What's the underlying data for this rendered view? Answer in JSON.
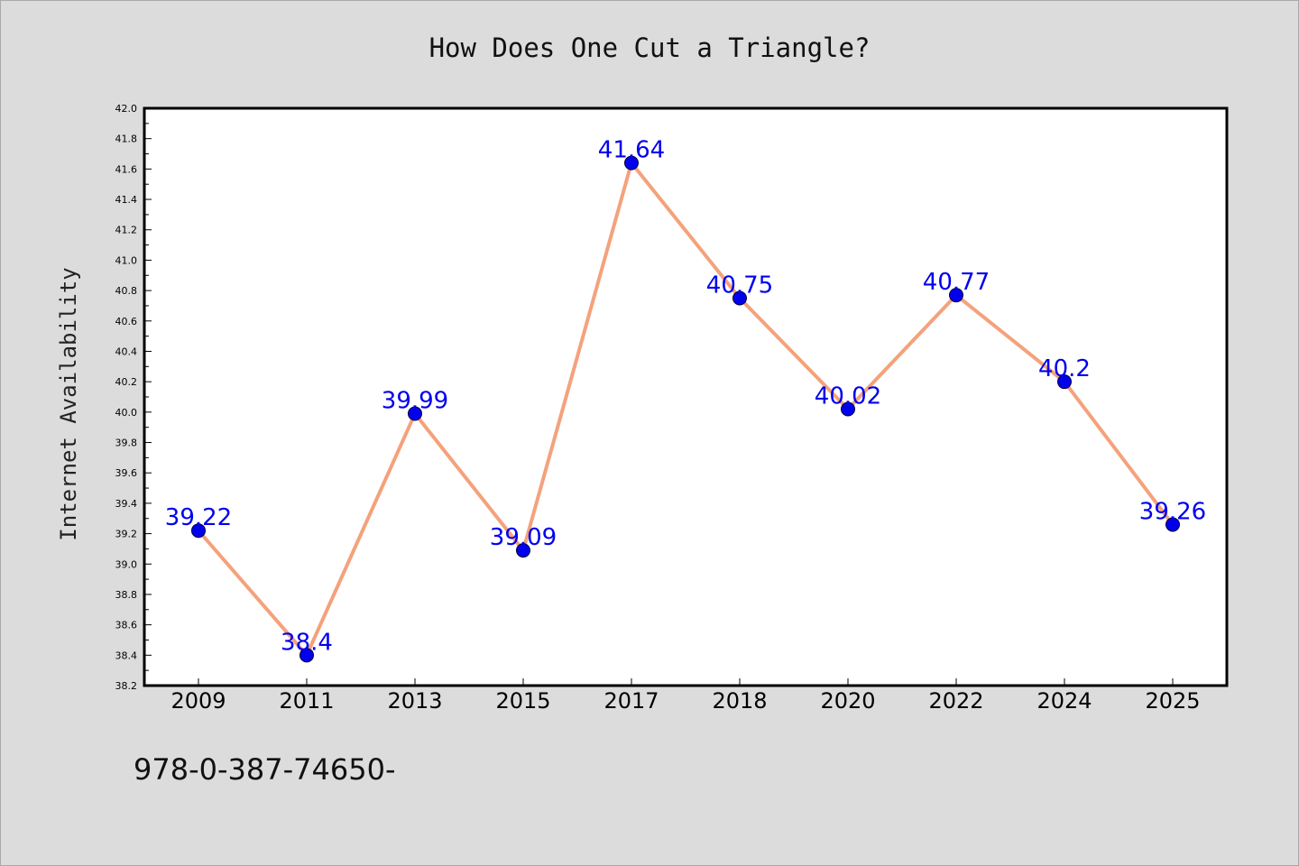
{
  "footer": {
    "code_text": "978-0-387-74650-"
  },
  "chart_data": {
    "type": "line",
    "title": "How Does One Cut a Triangle?",
    "xlabel": "",
    "ylabel": "Internet Availability",
    "categories": [
      "2009",
      "2011",
      "2013",
      "2015",
      "2017",
      "2018",
      "2020",
      "2022",
      "2024",
      "2025"
    ],
    "values": [
      39.22,
      38.4,
      39.99,
      39.09,
      41.64,
      40.75,
      40.02,
      40.77,
      40.2,
      39.26
    ],
    "data_labels": [
      "39.22",
      "38.4",
      "39.99",
      "39.09",
      "41.64",
      "40.75",
      "40.02",
      "40.77",
      "40.2",
      "39.26"
    ],
    "ylim": [
      38.2,
      42.0
    ],
    "y_ticks": [
      "38.2",
      "38.4",
      "38.6",
      "38.8",
      "39.0",
      "39.2",
      "39.4",
      "39.6",
      "39.8",
      "40.0",
      "40.2",
      "40.4",
      "40.6",
      "40.8",
      "41.0",
      "41.2",
      "41.4",
      "41.6",
      "41.8",
      "42.0"
    ],
    "grid": false,
    "line_color": "#f4a27c",
    "marker_color": "#0000ee",
    "label_color": "#0000ee"
  }
}
